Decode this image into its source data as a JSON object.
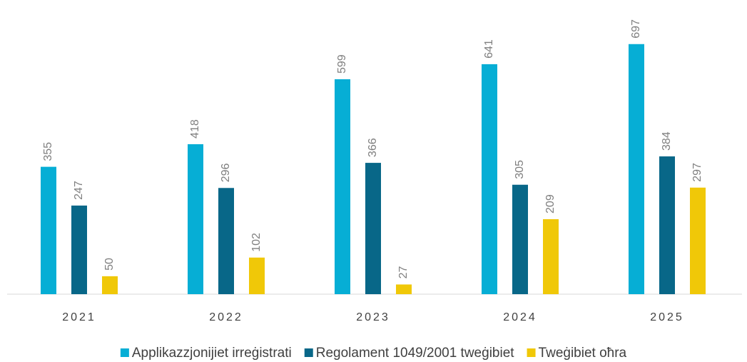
{
  "chart_data": {
    "type": "bar",
    "categories": [
      "2021",
      "2022",
      "2023",
      "2024",
      "2025"
    ],
    "series": [
      {
        "name": "Applikazzjonijiet irreġistrati",
        "color": "#06aed5",
        "values": [
          355,
          418,
          599,
          641,
          697
        ]
      },
      {
        "name": "Regolament 1049/2001 tweġibiet",
        "color": "#086788",
        "values": [
          247,
          296,
          366,
          305,
          384
        ]
      },
      {
        "name": "Tweġibiet oħra",
        "color": "#f0c808",
        "values": [
          50,
          102,
          27,
          209,
          297
        ]
      }
    ],
    "ylim": [
      0,
      800
    ],
    "grid": false,
    "legend": "bottom"
  }
}
